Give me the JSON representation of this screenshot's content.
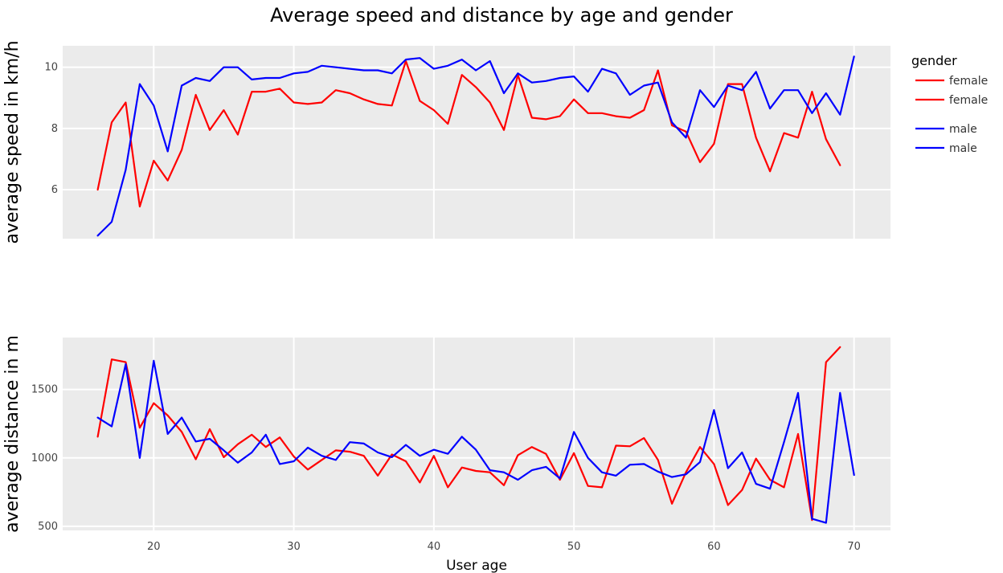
{
  "chart_data": {
    "type": "line",
    "title": "Average speed and distance by age and gender",
    "xlabel": "User age",
    "xlim": [
      13.5,
      72.6
    ],
    "xticks": [
      20,
      30,
      40,
      50,
      60,
      70
    ],
    "legend": {
      "title": "gender",
      "placement": "top-right",
      "items": [
        {
          "label": "female",
          "color": "#ff0000"
        },
        {
          "label": "female",
          "color": "#ff0000"
        },
        {
          "label": "male",
          "color": "#0000ff"
        },
        {
          "label": "male",
          "color": "#0000ff"
        }
      ]
    },
    "panels": [
      {
        "id": "speed",
        "ylabel": "average speed in km/h",
        "ylim": [
          4.4,
          10.7
        ],
        "yticks": [
          6,
          8,
          10
        ],
        "series": [
          {
            "name": "female",
            "color": "#ff0000",
            "x": [
              16,
              17,
              18,
              19,
              20,
              21,
              22,
              23,
              24,
              25,
              26,
              27,
              28,
              29,
              30,
              31,
              32,
              33,
              34,
              35,
              36,
              37,
              38,
              39,
              40,
              41,
              42,
              43,
              44,
              45,
              46,
              47,
              48,
              49,
              50,
              51,
              52,
              53,
              54,
              55,
              56,
              57,
              58,
              59,
              60,
              61,
              62,
              63,
              64,
              65,
              66,
              67,
              68,
              69
            ],
            "y": [
              6.0,
              8.2,
              8.85,
              5.45,
              6.95,
              6.3,
              7.3,
              9.1,
              7.95,
              8.6,
              7.8,
              9.2,
              9.2,
              9.3,
              8.85,
              8.8,
              8.85,
              9.25,
              9.15,
              8.95,
              8.8,
              8.75,
              10.2,
              8.9,
              8.6,
              8.15,
              9.75,
              9.35,
              8.85,
              7.95,
              9.75,
              8.35,
              8.3,
              8.4,
              8.95,
              8.5,
              8.5,
              8.4,
              8.35,
              8.6,
              9.9,
              8.1,
              7.9,
              6.9,
              7.5,
              9.45,
              9.45,
              7.7,
              6.6,
              7.85,
              7.7,
              9.2,
              7.65,
              6.8
            ]
          },
          {
            "name": "male",
            "color": "#0000ff",
            "x": [
              16,
              17,
              18,
              19,
              20,
              21,
              22,
              23,
              24,
              25,
              26,
              27,
              28,
              29,
              30,
              31,
              32,
              33,
              34,
              35,
              36,
              37,
              38,
              39,
              40,
              41,
              42,
              43,
              44,
              45,
              46,
              47,
              48,
              49,
              50,
              51,
              52,
              53,
              54,
              55,
              56,
              57,
              58,
              59,
              60,
              61,
              62,
              63,
              64,
              65,
              66,
              67,
              68,
              69,
              70
            ],
            "y": [
              4.5,
              4.95,
              6.65,
              9.45,
              8.75,
              7.25,
              9.4,
              9.65,
              9.55,
              10.0,
              10.0,
              9.6,
              9.65,
              9.65,
              9.8,
              9.85,
              10.05,
              10.0,
              9.95,
              9.9,
              9.9,
              9.8,
              10.25,
              10.3,
              9.95,
              10.05,
              10.25,
              9.9,
              10.2,
              9.15,
              9.8,
              9.5,
              9.55,
              9.65,
              9.7,
              9.2,
              9.95,
              9.8,
              9.1,
              9.4,
              9.5,
              8.2,
              7.7,
              9.25,
              8.7,
              9.4,
              9.25,
              9.85,
              8.65,
              9.25,
              9.25,
              8.5,
              9.15,
              8.45,
              10.35
            ]
          }
        ]
      },
      {
        "id": "distance",
        "ylabel": "average distance in m",
        "ylim": [
          470,
          1880
        ],
        "yticks": [
          500,
          1000,
          1500
        ],
        "series": [
          {
            "name": "female",
            "color": "#ff0000",
            "x": [
              16,
              17,
              18,
              19,
              20,
              21,
              22,
              23,
              24,
              25,
              26,
              27,
              28,
              29,
              30,
              31,
              32,
              33,
              34,
              35,
              36,
              37,
              38,
              39,
              40,
              41,
              42,
              43,
              44,
              45,
              46,
              47,
              48,
              49,
              50,
              51,
              52,
              53,
              54,
              55,
              56,
              57,
              58,
              59,
              60,
              61,
              62,
              63,
              64,
              65,
              66,
              67,
              68,
              69
            ],
            "y": [
              1155,
              1720,
              1700,
              1220,
              1400,
              1310,
              1190,
              990,
              1210,
              1005,
              1100,
              1170,
              1080,
              1150,
              1010,
              915,
              985,
              1055,
              1045,
              1015,
              870,
              1025,
              975,
              820,
              1015,
              785,
              930,
              905,
              895,
              800,
              1020,
              1080,
              1030,
              840,
              1035,
              795,
              785,
              1090,
              1085,
              1145,
              985,
              665,
              895,
              1080,
              955,
              655,
              765,
              995,
              840,
              785,
              1175,
              545,
              1700,
              1810
            ]
          },
          {
            "name": "male",
            "color": "#0000ff",
            "x": [
              16,
              17,
              18,
              19,
              20,
              21,
              22,
              23,
              24,
              25,
              26,
              27,
              28,
              29,
              30,
              31,
              32,
              33,
              34,
              35,
              36,
              37,
              38,
              39,
              40,
              41,
              42,
              43,
              44,
              45,
              46,
              47,
              48,
              49,
              50,
              51,
              52,
              53,
              54,
              55,
              56,
              57,
              58,
              59,
              60,
              61,
              62,
              63,
              64,
              65,
              66,
              67,
              68,
              69,
              70
            ],
            "y": [
              1295,
              1230,
              1685,
              1000,
              1710,
              1175,
              1295,
              1120,
              1140,
              1055,
              965,
              1040,
              1170,
              955,
              975,
              1075,
              1015,
              985,
              1115,
              1105,
              1040,
              1005,
              1095,
              1015,
              1060,
              1030,
              1155,
              1060,
              910,
              895,
              840,
              910,
              935,
              850,
              1190,
              1000,
              895,
              870,
              950,
              955,
              900,
              860,
              880,
              970,
              1350,
              925,
              1040,
              810,
              775,
              1115,
              1475,
              555,
              525,
              1475,
              875
            ]
          }
        ]
      }
    ]
  }
}
